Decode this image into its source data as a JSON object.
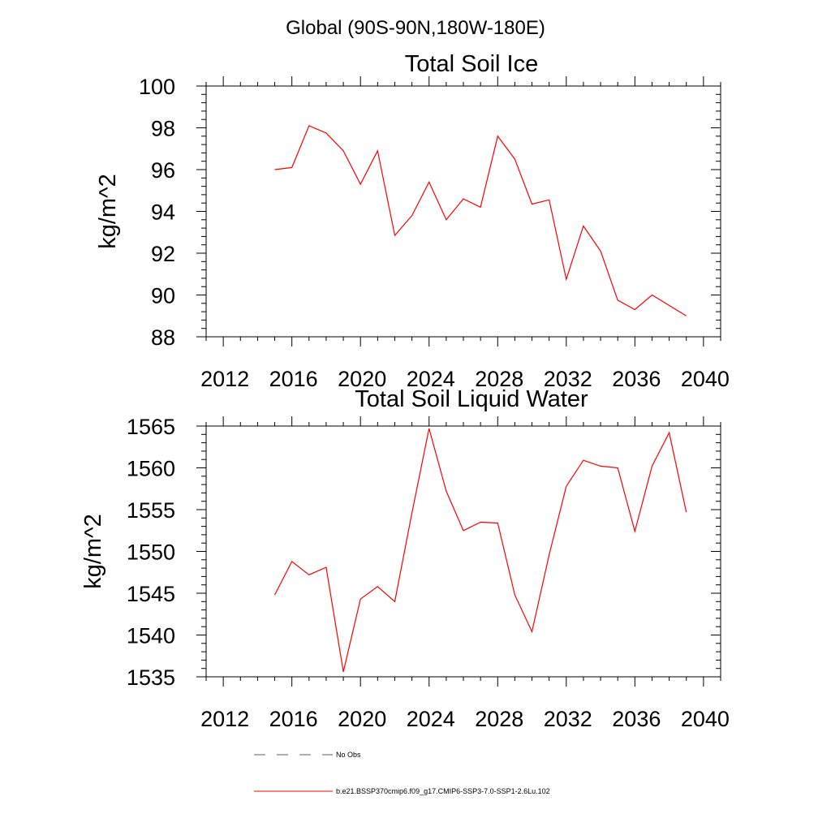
{
  "header": {
    "title": "Global (90S-90N,180W-180E)"
  },
  "chart_data": [
    {
      "type": "line",
      "title": "Total Soil Ice",
      "ylabel": "kg/m^2",
      "xlabel": "",
      "xlim": [
        2011,
        2041
      ],
      "ylim": [
        88,
        100
      ],
      "xticks": [
        2012,
        2016,
        2020,
        2024,
        2028,
        2032,
        2036,
        2040
      ],
      "yticks": [
        88,
        90,
        92,
        94,
        96,
        98,
        100
      ],
      "grid": false,
      "series": [
        {
          "name": "b.e21.BSSP370cmip6.f09_g17.CMIP6-SSP3-7.0-SSP1-2.6Lu.102",
          "color": "#ff0000",
          "x": [
            2015,
            2016,
            2017,
            2018,
            2019,
            2020,
            2021,
            2022,
            2023,
            2024,
            2025,
            2026,
            2027,
            2028,
            2029,
            2030,
            2031,
            2032,
            2033,
            2034,
            2035,
            2036,
            2037,
            2038,
            2039
          ],
          "y": [
            96.0,
            96.1,
            98.1,
            97.75,
            96.9,
            95.3,
            96.9,
            92.85,
            93.8,
            95.4,
            93.6,
            94.6,
            94.2,
            97.6,
            96.5,
            94.35,
            94.55,
            90.75,
            93.3,
            92.1,
            89.75,
            89.3,
            90.0,
            89.5,
            89.0
          ]
        }
      ]
    },
    {
      "type": "line",
      "title": "Total Soil Liquid Water",
      "ylabel": "kg/m^2",
      "xlabel": "",
      "xlim": [
        2011,
        2041
      ],
      "ylim": [
        1535,
        1565
      ],
      "xticks": [
        2012,
        2016,
        2020,
        2024,
        2028,
        2032,
        2036,
        2040
      ],
      "yticks": [
        1535,
        1540,
        1545,
        1550,
        1555,
        1560,
        1565
      ],
      "grid": false,
      "series": [
        {
          "name": "b.e21.BSSP370cmip6.f09_g17.CMIP6-SSP3-7.0-SSP1-2.6Lu.102",
          "color": "#ff0000",
          "x": [
            2015,
            2016,
            2017,
            2018,
            2019,
            2020,
            2021,
            2022,
            2023,
            2024,
            2025,
            2026,
            2027,
            2028,
            2029,
            2030,
            2031,
            2032,
            2033,
            2034,
            2035,
            2036,
            2037,
            2038,
            2039
          ],
          "y": [
            1544.8,
            1548.8,
            1547.2,
            1548.1,
            1535.6,
            1544.3,
            1545.8,
            1544.0,
            1554.6,
            1564.7,
            1557.2,
            1552.5,
            1553.5,
            1553.4,
            1544.8,
            1540.4,
            1549.6,
            1557.8,
            1560.9,
            1560.2,
            1560.0,
            1552.4,
            1560.2,
            1564.2,
            1554.7
          ]
        }
      ]
    }
  ],
  "legend": {
    "placement": "bottom",
    "items": [
      {
        "label": "No Obs",
        "color": "#5a5a8c",
        "style": "dashed"
      },
      {
        "label": "b.e21.BSSP370cmip6.f09_g17.CMIP6-SSP3-7.0-SSP1-2.6Lu.102",
        "color": "#ff0000",
        "style": "solid"
      }
    ]
  }
}
